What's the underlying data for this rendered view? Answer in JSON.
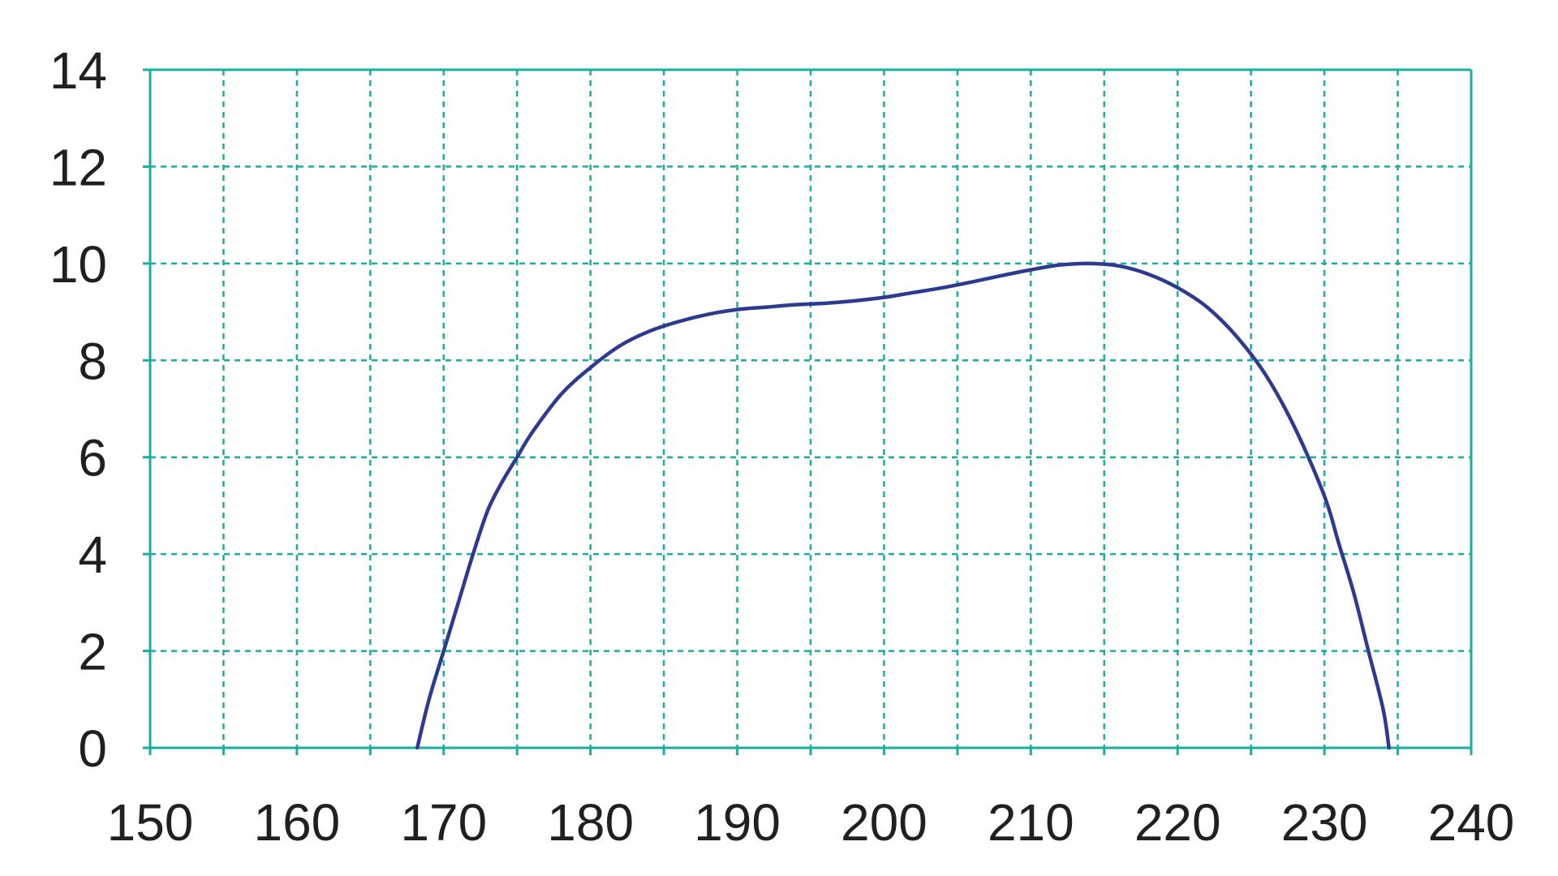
{
  "colors": {
    "grid": "#1aada1",
    "curve": "#2e3a8f",
    "text": "#231f20",
    "background": "#ffffff"
  },
  "chart_data": {
    "type": "line",
    "title": "",
    "xlabel": "",
    "ylabel": "",
    "xlim": [
      150,
      240
    ],
    "ylim": [
      0,
      14
    ],
    "x_ticks": [
      150,
      160,
      170,
      180,
      190,
      200,
      210,
      220,
      230,
      240
    ],
    "y_ticks": [
      0,
      2,
      4,
      6,
      8,
      10,
      12,
      14
    ],
    "x_minor_gridlines": [
      155,
      165,
      175,
      185,
      195,
      205,
      215,
      225,
      235
    ],
    "y_minor_gridlines": [],
    "grid": true,
    "grid_style": "dashed",
    "legend": "none",
    "series": [
      {
        "x": [
          168.2,
          169,
          170,
          171,
          172,
          173,
          174,
          175,
          176,
          178,
          180,
          182,
          184,
          186,
          188,
          190,
          192,
          194,
          196,
          198,
          200,
          202,
          204,
          206,
          208,
          210,
          212,
          214,
          216,
          218,
          220,
          222,
          224,
          226,
          228,
          230,
          231,
          232,
          233,
          234,
          234.4
        ],
        "y": [
          0,
          1.0,
          2.0,
          3.0,
          4.0,
          4.9,
          5.5,
          6.0,
          6.5,
          7.3,
          7.85,
          8.3,
          8.6,
          8.8,
          8.95,
          9.05,
          9.1,
          9.15,
          9.18,
          9.23,
          9.3,
          9.4,
          9.5,
          9.62,
          9.75,
          9.87,
          9.97,
          10.0,
          9.95,
          9.78,
          9.5,
          9.1,
          8.5,
          7.7,
          6.6,
          5.2,
          4.2,
          3.2,
          2.0,
          0.8,
          0
        ]
      }
    ]
  }
}
